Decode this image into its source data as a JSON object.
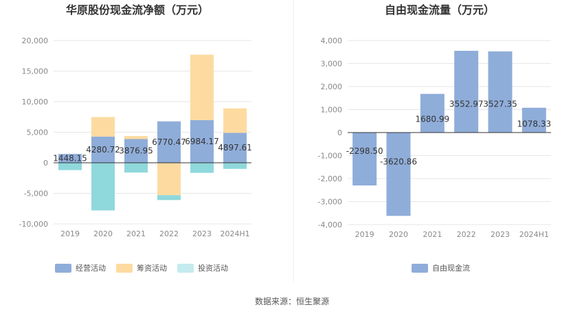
{
  "colors": {
    "operating": "#8fadd9",
    "financing": "#fddba0",
    "investing": "#8fd8dc",
    "free_cash_flow": "#8fadd9",
    "grid": "#e6e6e6",
    "axis": "#333333"
  },
  "source": "数据来源：恒生聚源",
  "chart_data": [
    {
      "type": "bar",
      "stacked": true,
      "title": "华原股份现金流净额（万元）",
      "categories": [
        "2019",
        "2020",
        "2021",
        "2022",
        "2023",
        "2024H1"
      ],
      "ylim": [
        -10000,
        20000
      ],
      "yticks": [
        -10000,
        -5000,
        0,
        5000,
        10000,
        15000,
        20000
      ],
      "ytick_labels": [
        "-10,000",
        "-5,000",
        "0",
        "5,000",
        "10,000",
        "15,000",
        "20,000"
      ],
      "legend_position": "bottom",
      "series": [
        {
          "name": "经营活动",
          "values": [
            1448.15,
            4280.72,
            3876.95,
            6770.47,
            6984.17,
            4897.61
          ],
          "data_labels": [
            "1448.15",
            "4280.72",
            "3876.95",
            "6770.47",
            "6984.17",
            "4897.61"
          ]
        },
        {
          "name": "筹资活动",
          "values": [
            0,
            3200,
            500,
            -5300,
            10700,
            4000
          ]
        },
        {
          "name": "投资活动",
          "values": [
            -1200,
            -7800,
            -1600,
            -800,
            -1650,
            -1000
          ]
        }
      ]
    },
    {
      "type": "bar",
      "title": "自由现金流量（万元）",
      "categories": [
        "2019",
        "2020",
        "2021",
        "2022",
        "2023",
        "2024H1"
      ],
      "ylim": [
        -4000,
        4000
      ],
      "yticks": [
        -4000,
        -3000,
        -2000,
        -1000,
        0,
        1000,
        2000,
        3000,
        4000
      ],
      "ytick_labels": [
        "-4,000",
        "-3,000",
        "-2,000",
        "-1,000",
        "0",
        "1,000",
        "2,000",
        "3,000",
        "4,000"
      ],
      "legend_position": "bottom",
      "series": [
        {
          "name": "自由现金流",
          "values": [
            -2298.5,
            -3620.86,
            1680.99,
            3552.97,
            3527.35,
            1078.33
          ],
          "data_labels": [
            "-2298.50",
            "-3620.86",
            "1680.99",
            "3552.97",
            "3527.35",
            "1078.33"
          ]
        }
      ]
    }
  ]
}
